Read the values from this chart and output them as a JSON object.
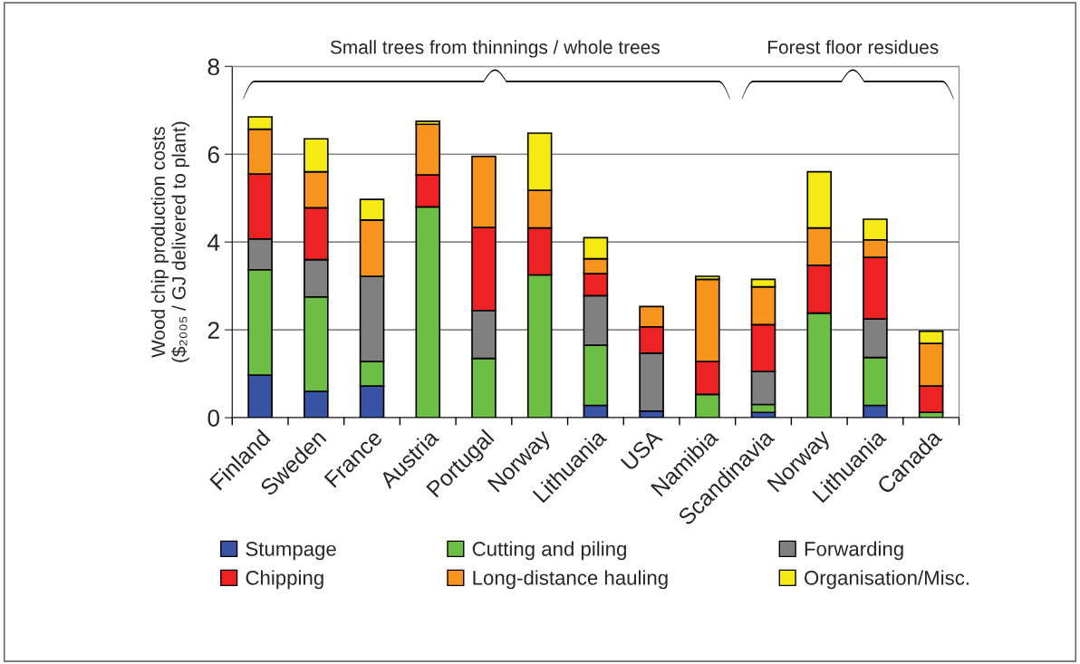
{
  "chart_data": {
    "type": "bar",
    "stacked": true,
    "ylabel": "Wood chip production costs\n($₂₀₀₅ / GJ delivered to plant)",
    "categories": [
      "Finland",
      "Sweden",
      "France",
      "Austria",
      "Portugal",
      "Norway",
      "Lithuania",
      "USA",
      "Namibia",
      "Scandinavia",
      "Norway",
      "Lithuania",
      "Canada"
    ],
    "series": [
      {
        "name": "Stumpage",
        "color": "#3953a4",
        "values": [
          0.97,
          0.6,
          0.72,
          null,
          null,
          null,
          0.28,
          0.15,
          null,
          0.12,
          null,
          0.28,
          null
        ]
      },
      {
        "name": "Cutting and piling",
        "color": "#6dbe45",
        "values": [
          2.4,
          2.15,
          0.56,
          4.8,
          1.35,
          3.25,
          1.37,
          null,
          0.53,
          0.18,
          2.38,
          1.09,
          0.12
        ]
      },
      {
        "name": "Forwarding",
        "color": "#808080",
        "values": [
          0.7,
          0.85,
          1.94,
          null,
          1.09,
          null,
          1.13,
          1.32,
          null,
          0.75,
          null,
          0.88,
          null
        ]
      },
      {
        "name": "Chipping",
        "color": "#ed2224",
        "values": [
          1.48,
          1.18,
          null,
          0.73,
          1.89,
          1.07,
          0.5,
          0.6,
          0.75,
          1.07,
          1.09,
          1.4,
          0.6
        ]
      },
      {
        "name": "Long-distance hauling",
        "color": "#f7941d",
        "values": [
          1.02,
          0.82,
          1.28,
          1.15,
          1.62,
          0.86,
          0.34,
          0.46,
          1.87,
          0.86,
          0.85,
          0.4,
          0.97
        ]
      },
      {
        "name": "Organisation/Misc.",
        "color": "#f5ea14",
        "values": [
          0.28,
          0.75,
          0.47,
          0.07,
          null,
          1.3,
          0.48,
          null,
          0.07,
          0.17,
          1.28,
          0.47,
          0.28
        ]
      }
    ],
    "annotations": [
      "Small trees from thinnings / whole trees",
      "Forest floor residues"
    ],
    "ylim": [
      0,
      8
    ],
    "yticks": [
      0,
      2,
      4,
      6,
      8
    ],
    "grid": "y",
    "legend": "bottom"
  }
}
